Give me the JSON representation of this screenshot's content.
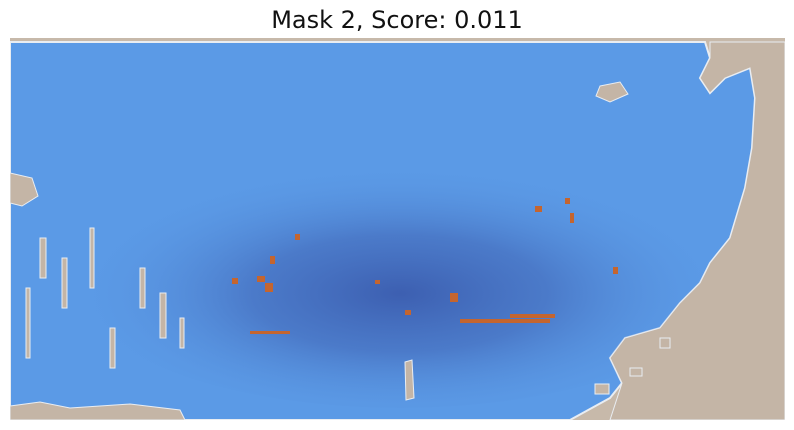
{
  "title": "Mask 2, Score: 0.011",
  "colors": {
    "mask_blue": "#5b9ae6",
    "mask_center": "#3a5fb0",
    "concrete": "#c4b5a6",
    "rust": "#c4652f",
    "outline": "#e9edf2"
  }
}
